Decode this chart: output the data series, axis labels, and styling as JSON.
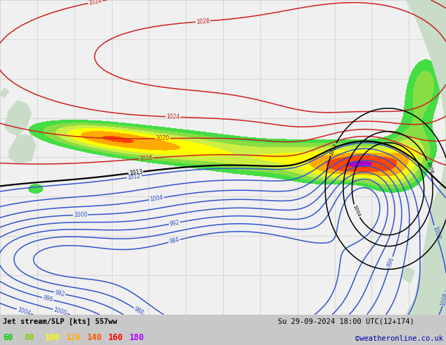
{
  "title_line1": "Jet stream/SLP [kts] 557ww",
  "title_line2": "Su 29-09-2024 18:00 UTC(12+174)",
  "watermark": "©weatheronline.co.uk",
  "legend_values": [
    60,
    80,
    100,
    120,
    140,
    160,
    180
  ],
  "legend_colors": [
    "#00cc00",
    "#88cc00",
    "#ffff00",
    "#ffaa00",
    "#ff5500",
    "#ff0000",
    "#aa00ff"
  ],
  "fig_width": 6.34,
  "fig_height": 4.9,
  "dpi": 100,
  "ocean_color": "#f0f0f0",
  "land_color": "#c8dcc8",
  "grid_color": "#cccccc",
  "bottom_bar_color": "#c8c8c8",
  "title_fontsize": 7.5,
  "legend_fontsize": 8.5,
  "subtitle_fontsize": 7.5,
  "watermark_color": "#0000aa",
  "watermark_fontsize": 7.5,
  "jet_boundaries": [
    60,
    80,
    100,
    120,
    140,
    160,
    180,
    220
  ],
  "jet_colors": [
    "#44dd44",
    "#88dd44",
    "#ccee44",
    "#ffff00",
    "#ffaa00",
    "#ff4400",
    "#aa00cc"
  ],
  "slp_blue_levels": [
    984,
    988,
    992,
    996,
    1000,
    1004,
    1008,
    1012
  ],
  "slp_red_levels": [
    1016,
    1020,
    1024,
    1028
  ],
  "slp_black_levels": [
    1013
  ]
}
